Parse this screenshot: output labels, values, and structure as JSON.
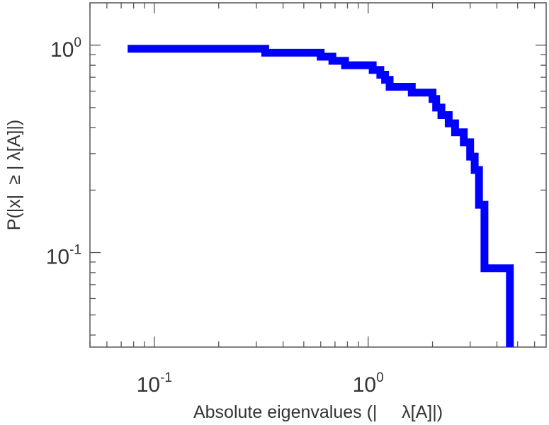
{
  "chart_data": {
    "type": "line",
    "title": "",
    "xlabel": "Absolute eigenvalues (|     λ[A]|)",
    "ylabel": "P(|x|  ≥ | λ[A]|)",
    "x_scale": "log",
    "y_scale": "log",
    "xlim": [
      0.05,
      6.8
    ],
    "ylim": [
      0.035,
      1.6
    ],
    "grid": false,
    "legend": "none",
    "x_tick_labels": [
      {
        "base": "10",
        "exp": "-1",
        "value": 0.1
      },
      {
        "base": "10",
        "exp": "0",
        "value": 1.0
      }
    ],
    "y_tick_labels": [
      {
        "base": "10",
        "exp": "0",
        "value": 1.0
      },
      {
        "base": "10",
        "exp": "-1",
        "value": 0.1
      }
    ],
    "series": [
      {
        "color": "#0000ff",
        "drawstyle": "steps",
        "x": [
          0.075,
          0.33,
          0.33,
          0.6,
          0.6,
          0.68,
          0.68,
          0.78,
          0.78,
          1.05,
          1.05,
          1.14,
          1.14,
          1.2,
          1.2,
          1.26,
          1.26,
          1.6,
          1.6,
          2.0,
          2.0,
          2.08,
          2.08,
          2.2,
          2.2,
          2.38,
          2.38,
          2.55,
          2.55,
          2.8,
          2.8,
          3.0,
          3.0,
          3.15,
          3.15,
          3.3,
          3.3,
          3.5,
          3.5,
          4.6,
          4.6
        ],
        "y": [
          0.96,
          0.96,
          0.92,
          0.92,
          0.88,
          0.88,
          0.84,
          0.84,
          0.8,
          0.8,
          0.76,
          0.76,
          0.72,
          0.72,
          0.68,
          0.68,
          0.63,
          0.63,
          0.59,
          0.59,
          0.55,
          0.55,
          0.5,
          0.5,
          0.46,
          0.46,
          0.42,
          0.42,
          0.38,
          0.38,
          0.34,
          0.34,
          0.29,
          0.29,
          0.25,
          0.25,
          0.17,
          0.17,
          0.084,
          0.084,
          0.035
        ]
      }
    ]
  },
  "colors": {
    "series": "#0000ff",
    "axes": "#555555",
    "text": "#333333"
  }
}
